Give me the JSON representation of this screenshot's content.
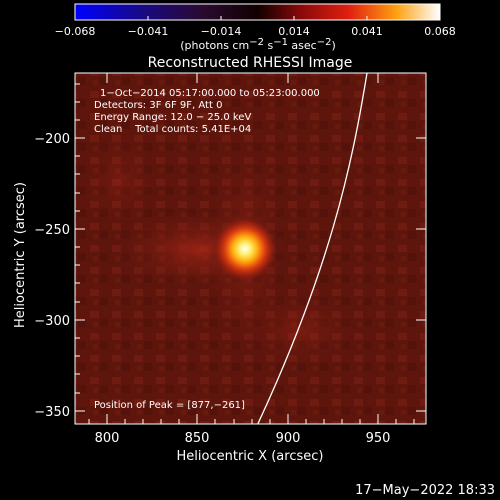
{
  "colorbar": {
    "ticks": [
      "−0.068",
      "−0.041",
      "−0.014",
      "0.014",
      "0.041",
      "0.068"
    ],
    "unit_main": "(photons cm",
    "unit_sup1": "−2",
    "unit_mid1": " s",
    "unit_sup2": "−1",
    "unit_mid2": " asec",
    "unit_sup3": "−2",
    "unit_end": ")"
  },
  "plot": {
    "title": "Reconstructed RHESSI Image",
    "xlabel": "Heliocentric X (arcsec)",
    "ylabel": "Heliocentric Y (arcsec)",
    "xticks": [
      "800",
      "850",
      "900",
      "950"
    ],
    "yticks": [
      "−200",
      "−250",
      "−300",
      "−350"
    ],
    "annotations": {
      "line1": "1−Oct−2014 05:17:00.000 to 05:23:00.000",
      "line2": "Detectors: 3F 6F 9F, Att 0",
      "line3": "Energy Range: 12.0 − 25.0 keV",
      "line4": "Clean    Total counts: 5.41E+04",
      "peak": "Position of Peak = [877,−261]"
    }
  },
  "footer": {
    "timestamp": "17−May−2022 18:33"
  },
  "colors": {
    "background": "#000000",
    "field": "#6a1a10",
    "limb": "#ffffff"
  }
}
